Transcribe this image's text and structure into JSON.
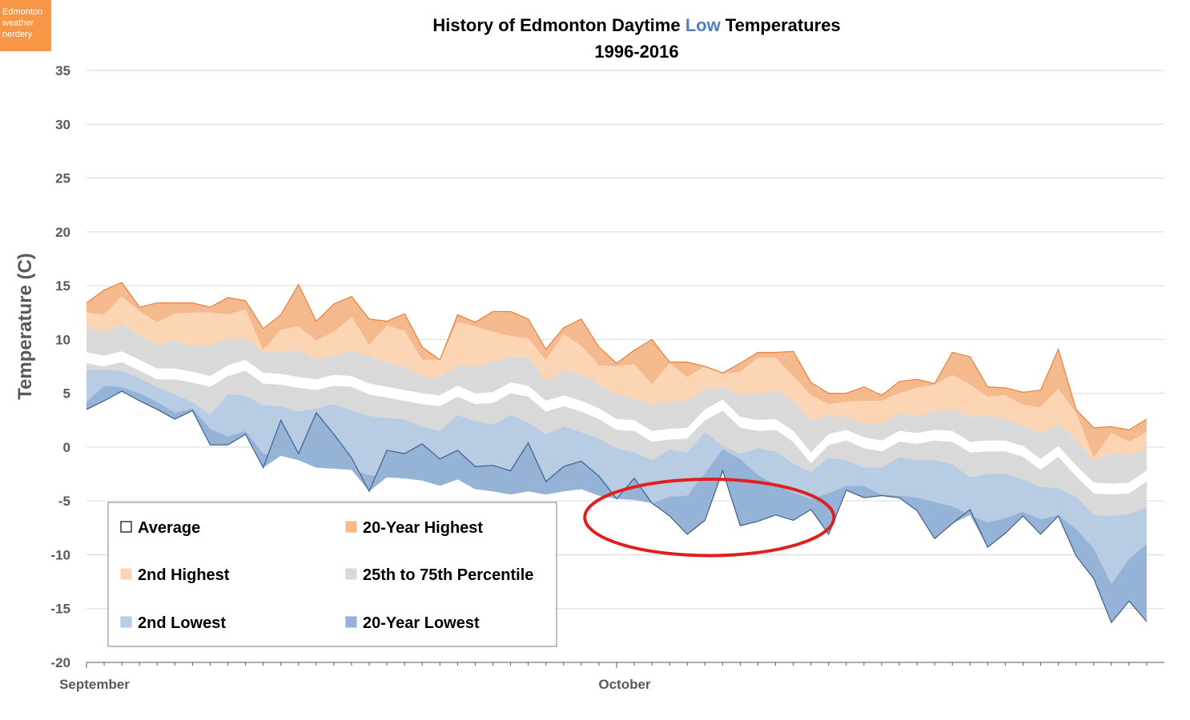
{
  "badge": {
    "lines": [
      "Edmonton",
      "weather",
      "nerdery"
    ]
  },
  "colors": {
    "highest": "#f5b98e",
    "highest_line": "#e9803b",
    "second_highest": "#fcd5b5",
    "percentile": "#d9d9d9",
    "average": "#ffffff",
    "second_lowest": "#b8cce4",
    "lowest": "#95b3d7",
    "lowest_line": "#3f5f86",
    "title_low": "#4f81bd",
    "gridline": "#d9d9d9",
    "axis": "#595959",
    "annotation": "#e02020"
  },
  "chart_data": {
    "type": "area",
    "title_prefix": "History of Edmonton Daytime ",
    "title_highlight": "Low",
    "title_suffix": " Temperatures",
    "subtitle": "1996-2016",
    "ylabel": "Temperature (C)",
    "ylim": [
      -20,
      35
    ],
    "yticks": [
      "35",
      "30",
      "25",
      "20",
      "15",
      "10",
      "5",
      "0",
      "-5",
      "-10",
      "-15",
      "-20"
    ],
    "x_start_day": 1,
    "x_end_day": 62,
    "month_labels": [
      {
        "label": "September",
        "day": 1
      },
      {
        "label": "October",
        "day": 31
      }
    ],
    "gridlines": true,
    "annotation": {
      "type": "ellipse",
      "day_from": 29.2,
      "day_to": 43.3,
      "temp_from": -10,
      "temp_to": -3.5
    },
    "series": [
      {
        "name": "20-Year Highest",
        "values": [
          13.4,
          14.6,
          15.3,
          13.0,
          13.4,
          13.4,
          13.4,
          13.0,
          13.9,
          13.6,
          11.0,
          12.3,
          15.1,
          11.7,
          13.3,
          14.0,
          11.9,
          11.7,
          12.4,
          9.3,
          8.1,
          12.3,
          11.6,
          12.6,
          12.6,
          11.9,
          9.1,
          11.1,
          11.9,
          9.3,
          7.8,
          9.0,
          10.0,
          7.9,
          7.9,
          7.5,
          6.9,
          7.8,
          8.8,
          8.8,
          8.9,
          6.0,
          5.0,
          5.0,
          5.6,
          4.8,
          6.1,
          6.3,
          5.9,
          8.8,
          8.4,
          5.6,
          5.5,
          5.1,
          5.3,
          9.1,
          3.5,
          1.8,
          1.9,
          1.6,
          2.6
        ]
      },
      {
        "name": "2nd Highest",
        "values": [
          12.5,
          12.3,
          14.0,
          12.6,
          11.6,
          12.4,
          12.5,
          12.5,
          12.3,
          12.8,
          9.0,
          10.9,
          11.2,
          9.9,
          10.7,
          12.1,
          9.5,
          11.3,
          10.8,
          8.1,
          8.1,
          11.6,
          11.2,
          10.7,
          10.3,
          10.1,
          8.1,
          10.5,
          9.4,
          7.6,
          7.5,
          7.7,
          5.8,
          7.8,
          6.5,
          7.5,
          6.8,
          7.0,
          8.3,
          8.3,
          6.6,
          4.8,
          4.0,
          4.2,
          4.3,
          4.3,
          5.0,
          5.5,
          5.8,
          6.7,
          5.8,
          4.7,
          4.8,
          3.9,
          3.7,
          5.4,
          3.2,
          -1.0,
          1.3,
          0.5,
          1.4
        ]
      },
      {
        "name": "25th to 75th Percentile (upper)",
        "values": [
          11.1,
          10.7,
          11.5,
          10.4,
          9.5,
          9.9,
          9.4,
          9.5,
          10.0,
          10.2,
          8.8,
          8.9,
          9.0,
          8.1,
          8.5,
          9.0,
          8.5,
          7.8,
          7.5,
          6.6,
          6.5,
          7.6,
          7.5,
          7.9,
          8.4,
          8.4,
          6.1,
          7.2,
          6.7,
          5.9,
          4.9,
          4.5,
          4.0,
          4.2,
          4.3,
          5.4,
          5.6,
          4.8,
          5.0,
          5.3,
          4.3,
          2.5,
          2.9,
          2.8,
          2.2,
          2.1,
          3.2,
          2.8,
          3.4,
          3.5,
          2.8,
          2.9,
          2.6,
          2.0,
          1.2,
          2.2,
          0.7,
          -1.2,
          -0.6,
          -0.7,
          -0.2
        ]
      },
      {
        "name": "Average (upper)",
        "values": [
          8.8,
          8.5,
          8.9,
          8.1,
          7.3,
          7.3,
          7.0,
          6.6,
          7.6,
          8.1,
          6.9,
          6.8,
          6.5,
          6.3,
          6.7,
          6.6,
          5.9,
          5.6,
          5.3,
          5.0,
          4.8,
          5.7,
          5.0,
          5.1,
          6.0,
          5.7,
          4.3,
          4.8,
          4.3,
          3.6,
          2.6,
          2.5,
          1.5,
          1.7,
          1.8,
          3.5,
          4.4,
          2.8,
          2.5,
          2.6,
          1.5,
          -0.5,
          1.2,
          1.6,
          0.9,
          0.6,
          1.5,
          1.3,
          1.6,
          1.5,
          0.5,
          0.6,
          0.6,
          0.1,
          -1.1,
          0.1,
          -1.7,
          -3.3,
          -3.4,
          -3.3,
          -2.2
        ]
      },
      {
        "name": "Average (lower)",
        "values": [
          7.8,
          7.5,
          7.9,
          7.1,
          6.3,
          6.3,
          6.0,
          5.6,
          6.6,
          7.1,
          5.9,
          5.8,
          5.5,
          5.3,
          5.7,
          5.6,
          4.9,
          4.6,
          4.3,
          4.0,
          3.8,
          4.7,
          4.0,
          4.1,
          5.0,
          4.7,
          3.3,
          3.8,
          3.3,
          2.6,
          1.6,
          1.5,
          0.5,
          0.7,
          0.8,
          2.5,
          3.4,
          1.8,
          1.5,
          1.6,
          0.5,
          -1.5,
          0.2,
          0.6,
          -0.1,
          -0.4,
          0.5,
          0.3,
          0.6,
          0.5,
          -0.5,
          -0.4,
          -0.4,
          -0.9,
          -2.1,
          -0.9,
          -2.7,
          -4.3,
          -4.4,
          -4.3,
          -3.2
        ]
      },
      {
        "name": "25th to 75th Percentile (lower)",
        "values": [
          7.2,
          7.2,
          7.1,
          6.4,
          5.6,
          4.9,
          4.2,
          3.0,
          4.9,
          4.8,
          3.9,
          3.8,
          3.3,
          3.6,
          4.0,
          3.4,
          2.9,
          2.7,
          2.6,
          1.9,
          1.5,
          3.0,
          2.4,
          2.1,
          3.0,
          2.3,
          1.2,
          1.9,
          1.4,
          0.8,
          -0.1,
          -0.5,
          -1.2,
          -0.2,
          -0.5,
          1.4,
          0.1,
          -0.6,
          -0.1,
          -0.4,
          -1.5,
          -2.3,
          -1.0,
          -1.2,
          -1.9,
          -1.9,
          -0.9,
          -1.2,
          -1.2,
          -1.6,
          -2.8,
          -2.5,
          -2.5,
          -3.0,
          -3.7,
          -3.8,
          -4.6,
          -6.3,
          -6.4,
          -6.2,
          -5.6
        ]
      },
      {
        "name": "2nd Lowest",
        "values": [
          4.2,
          5.7,
          5.6,
          5.0,
          4.2,
          3.2,
          3.6,
          1.7,
          1.0,
          1.5,
          -0.6,
          -0.8,
          -1.2,
          -1.9,
          -2.0,
          -2.1,
          -2.6,
          -2.8,
          -2.9,
          -3.1,
          -3.6,
          -3.0,
          -3.9,
          -4.1,
          -4.4,
          -4.1,
          -4.4,
          -4.1,
          -3.9,
          -4.5,
          -4.8,
          -4.9,
          -5.2,
          -4.6,
          -4.5,
          -2.4,
          -0.2,
          -1.1,
          -2.6,
          -3.5,
          -4.2,
          -4.8,
          -4.3,
          -3.6,
          -3.6,
          -4.4,
          -4.5,
          -4.7,
          -5.1,
          -5.5,
          -6.3,
          -7.0,
          -6.6,
          -6.0,
          -6.7,
          -6.3,
          -7.6,
          -9.4,
          -12.7,
          -10.4,
          -9.0
        ]
      },
      {
        "name": "20-Year Lowest",
        "values": [
          3.5,
          4.3,
          5.2,
          4.3,
          3.5,
          2.6,
          3.4,
          0.2,
          0.2,
          1.2,
          -1.9,
          2.5,
          -0.6,
          3.2,
          1.2,
          -1.0,
          -4.1,
          -0.3,
          -0.6,
          0.3,
          -1.1,
          -0.3,
          -1.8,
          -1.7,
          -2.2,
          0.4,
          -3.2,
          -1.8,
          -1.3,
          -2.7,
          -4.8,
          -2.9,
          -5.2,
          -6.4,
          -8.1,
          -6.8,
          -2.2,
          -7.3,
          -6.9,
          -6.3,
          -6.8,
          -5.8,
          -8.1,
          -4.0,
          -4.7,
          -4.5,
          -4.7,
          -5.9,
          -8.5,
          -7.1,
          -5.8,
          -9.3,
          -8.0,
          -6.4,
          -8.1,
          -6.4,
          -10.1,
          -12.2,
          -16.3,
          -14.3,
          -16.2
        ]
      }
    ],
    "band_colors": [
      "#f5b98e",
      "#fcd5b5",
      "#d9d9d9",
      "#ffffff",
      "#d9d9d9",
      "#b8cce4",
      "#95b3d7"
    ],
    "legend": [
      {
        "label": "Average",
        "swatch": "#ffffff",
        "border": "#000000"
      },
      {
        "label": "20-Year Highest",
        "swatch": "#f5b98e",
        "border": "#f5b98e"
      },
      {
        "label": "2nd Highest",
        "swatch": "#fcd5b5",
        "border": "#fcd5b5"
      },
      {
        "label": "25th to 75th Percentile",
        "swatch": "#d9d9d9",
        "border": "#d9d9d9"
      },
      {
        "label": "2nd Lowest",
        "swatch": "#b8cce4",
        "border": "#b8cce4"
      },
      {
        "label": "20-Year Lowest",
        "swatch": "#95b3d7",
        "border": "#95b3d7"
      }
    ]
  }
}
